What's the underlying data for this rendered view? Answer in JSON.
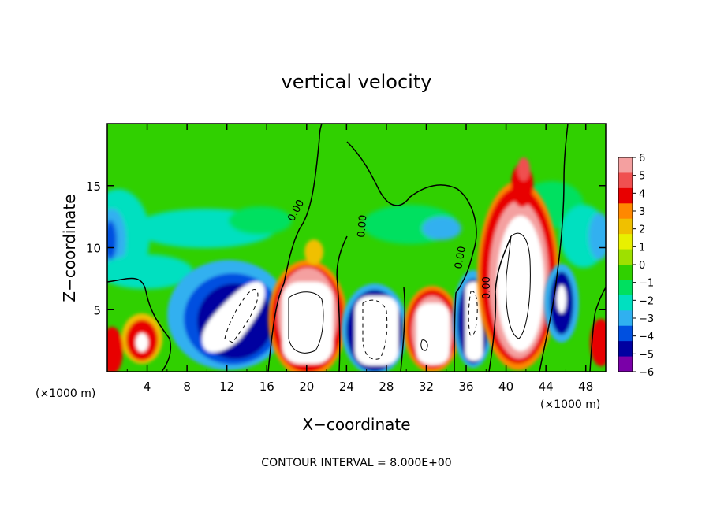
{
  "chart_data": {
    "type": "heatmap",
    "title": "vertical velocity",
    "xlabel": "X−coordinate",
    "ylabel": "Z−coordinate",
    "x_unit_left": "(×1000 m)",
    "x_unit_right": "(×1000 m)",
    "footer": "CONTOUR INTERVAL = 8.000E+00",
    "xlim": [
      0,
      50
    ],
    "ylim": [
      0,
      20
    ],
    "xticks": [
      4,
      8,
      12,
      16,
      20,
      24,
      28,
      32,
      36,
      40,
      44,
      48
    ],
    "yticks": [
      5,
      10,
      15
    ],
    "colorbar": {
      "min": -6,
      "max": 6,
      "ticks": [
        6,
        5,
        4,
        3,
        2,
        1,
        0,
        -1,
        -2,
        -3,
        -4,
        -5,
        -6
      ],
      "tick_labels": [
        "6",
        "5",
        "4",
        "3",
        "2",
        "1",
        "0",
        "−1",
        "−2",
        "−3",
        "−4",
        "−5",
        "−6"
      ],
      "colors": [
        "#f4a0a0",
        "#f05050",
        "#e80000",
        "#ff8800",
        "#f0c000",
        "#e8f000",
        "#9ee000",
        "#30d000",
        "#00e060",
        "#00e0c0",
        "#30b0f0",
        "#0050e0",
        "#0000a0",
        "#7a00a8"
      ]
    },
    "contour_labels": [
      "0.00",
      "0.00",
      "0.00",
      "0.00"
    ],
    "cells": [
      {
        "x": 12,
        "z": 4.5,
        "w": -5
      },
      {
        "x": 19.5,
        "z": 5,
        "w": 6
      },
      {
        "x": 27,
        "z": 4.5,
        "w": -5
      },
      {
        "x": 32.5,
        "z": 4,
        "w": 6
      },
      {
        "x": 36.5,
        "z": 4.5,
        "w": -5
      },
      {
        "x": 41.5,
        "z": 9,
        "w": 6
      },
      {
        "x": 45.5,
        "z": 5.5,
        "w": -4
      },
      {
        "x": 3.5,
        "z": 2.5,
        "w": 5
      }
    ]
  }
}
